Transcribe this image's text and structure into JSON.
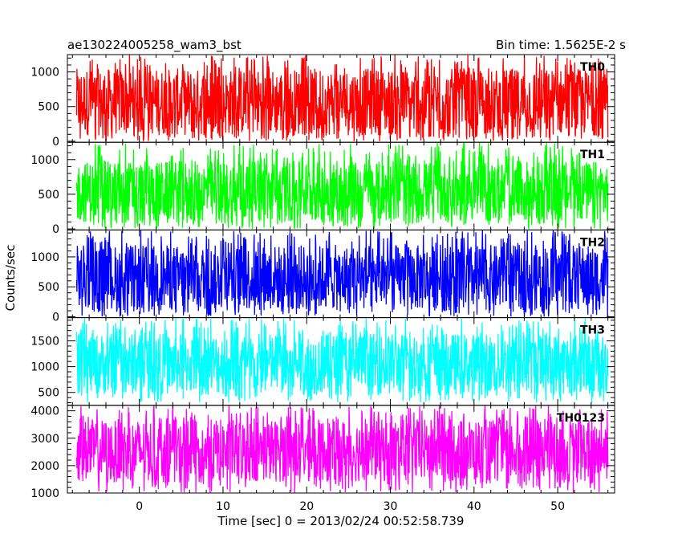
{
  "chart_data": {
    "type": "line",
    "title_left": "ae130224005258_wam3_bst",
    "title_right": "Bin time: 1.5625E-2 s",
    "xlabel": "Time [sec] 0 = 2013/02/24 00:52:58.739",
    "ylabel": "Counts/sec",
    "xlim": [
      -8.6,
      56.8
    ],
    "x_ticks": [
      0,
      10,
      20,
      30,
      40,
      50
    ],
    "x_minor_step": 2,
    "data_x_range": [
      -7.5,
      56.0
    ],
    "bin_time": 0.015625,
    "grid": false,
    "panels": [
      {
        "name": "TH0",
        "color": "#ff0000",
        "ylim": [
          -15,
          1250
        ],
        "y_ticks": [
          0,
          500,
          1000
        ],
        "y_minor_step": 100,
        "typical_min": 80,
        "typical_max": 1050,
        "mean": 560,
        "spike_max": 1250,
        "dip_min": 0
      },
      {
        "name": "TH1",
        "color": "#00ff00",
        "ylim": [
          -15,
          1250
        ],
        "y_ticks": [
          0,
          500,
          1000
        ],
        "y_minor_step": 100,
        "typical_min": 90,
        "typical_max": 980,
        "mean": 530,
        "spike_max": 1250,
        "dip_min": 0
      },
      {
        "name": "TH2",
        "color": "#0000ff",
        "ylim": [
          -15,
          1450
        ],
        "y_ticks": [
          0,
          500,
          1000
        ],
        "y_minor_step": 100,
        "typical_min": 100,
        "typical_max": 1200,
        "mean": 640,
        "spike_max": 1450,
        "dip_min": 0
      },
      {
        "name": "TH3",
        "color": "#00ffff",
        "ylim": [
          250,
          1950
        ],
        "y_ticks": [
          500,
          1000,
          1500
        ],
        "y_minor_step": 100,
        "typical_min": 450,
        "typical_max": 1650,
        "mean": 1050,
        "spike_max": 1950,
        "dip_min": 300
      },
      {
        "name": "TH0123",
        "color": "#ff00ff",
        "ylim": [
          1000,
          4200
        ],
        "y_ticks": [
          1000,
          2000,
          3000,
          4000
        ],
        "y_minor_step": 200,
        "typical_min": 1400,
        "typical_max": 3700,
        "mean": 2550,
        "spike_max": 4200,
        "dip_min": 1000
      }
    ]
  }
}
